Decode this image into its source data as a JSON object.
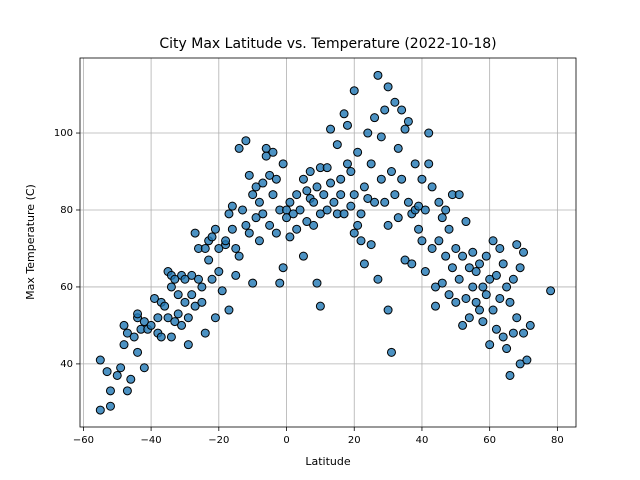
{
  "chart_data": {
    "type": "scatter",
    "title": "City Max Latitude vs. Temperature (2022-10-18)",
    "x_label": "Latitude",
    "y_label": "Max Temperature (C)",
    "color": "#1f77b4",
    "edge_color": "#000000",
    "grid": true,
    "xlim": [
      -61,
      85.5
    ],
    "ylim": [
      23.6,
      119.5
    ],
    "xticks": [
      {
        "value": -60,
        "label": "−60"
      },
      {
        "value": -40,
        "label": "−40"
      },
      {
        "value": -20,
        "label": "−20"
      },
      0,
      20,
      40,
      60,
      80
    ],
    "yticks": [
      40,
      60,
      80,
      100
    ],
    "x": [
      -55,
      -55,
      -53,
      -52,
      -52,
      -50,
      -49,
      -48,
      -48,
      -47,
      -47,
      -46,
      -45,
      -44,
      -44,
      -44,
      -43,
      -42,
      -42,
      -41,
      -40,
      -39,
      -38,
      -38,
      -37,
      -37,
      -36,
      -35,
      -35,
      -34,
      -34,
      -34,
      -33,
      -33,
      -32,
      -32,
      -31,
      -31,
      -30,
      -30,
      -29,
      -29,
      -28,
      -28,
      -27,
      -27,
      -26,
      -26,
      -25,
      -25,
      -24,
      -24,
      -23,
      -23,
      -22,
      -22,
      -21,
      -21,
      -20,
      -20,
      -19,
      -18,
      -18,
      -17,
      -17,
      -16,
      -16,
      -15,
      -15,
      -14,
      -14,
      -13,
      -12,
      -12,
      -11,
      -11,
      -10,
      -10,
      -9,
      -9,
      -8,
      -8,
      -7,
      -7,
      -6,
      -6,
      -5,
      -5,
      -4,
      -4,
      -3,
      -3,
      -2,
      -2,
      -1,
      -1,
      0,
      0,
      1,
      1,
      2,
      3,
      3,
      4,
      5,
      5,
      6,
      6,
      7,
      7,
      8,
      8,
      9,
      9,
      10,
      10,
      10,
      11,
      12,
      12,
      13,
      13,
      14,
      15,
      15,
      16,
      16,
      17,
      17,
      18,
      18,
      19,
      19,
      20,
      20,
      20,
      21,
      21,
      22,
      22,
      23,
      23,
      24,
      24,
      25,
      25,
      26,
      26,
      27,
      27,
      28,
      28,
      29,
      29,
      30,
      30,
      30,
      31,
      31,
      32,
      32,
      33,
      33,
      34,
      34,
      35,
      35,
      36,
      36,
      37,
      37,
      38,
      38,
      39,
      39,
      40,
      40,
      41,
      41,
      42,
      42,
      43,
      43,
      44,
      44,
      45,
      45,
      46,
      46,
      47,
      47,
      48,
      48,
      49,
      49,
      50,
      50,
      51,
      51,
      52,
      52,
      53,
      53,
      54,
      54,
      55,
      55,
      56,
      56,
      57,
      57,
      58,
      58,
      59,
      59,
      60,
      60,
      61,
      61,
      62,
      62,
      63,
      63,
      64,
      64,
      65,
      65,
      66,
      66,
      67,
      67,
      68,
      68,
      69,
      69,
      70,
      70,
      71,
      72,
      78
    ],
    "values": [
      41,
      28,
      38,
      29,
      33,
      37,
      39,
      50,
      45,
      33,
      48,
      36,
      47,
      43,
      52,
      53,
      49,
      39,
      51,
      49,
      50,
      57,
      52,
      48,
      56,
      47,
      55,
      52,
      64,
      63,
      60,
      47,
      62,
      51,
      58,
      53,
      50,
      63,
      56,
      62,
      45,
      52,
      63,
      58,
      55,
      74,
      70,
      62,
      60,
      56,
      70,
      48,
      72,
      67,
      73,
      62,
      75,
      52,
      64,
      70,
      59,
      71,
      72,
      79,
      54,
      81,
      75,
      63,
      70,
      96,
      68,
      80,
      98,
      76,
      89,
      74,
      84,
      61,
      78,
      86,
      72,
      82,
      87,
      79,
      96,
      94,
      89,
      76,
      95,
      84,
      88,
      74,
      80,
      61,
      92,
      65,
      80,
      78,
      73,
      82,
      79,
      84,
      75,
      80,
      88,
      68,
      85,
      77,
      83,
      90,
      82,
      76,
      86,
      61,
      55,
      79,
      91,
      84,
      91,
      80,
      87,
      101,
      82,
      79,
      97,
      88,
      84,
      105,
      79,
      92,
      102,
      90,
      81,
      111,
      74,
      84,
      76,
      95,
      79,
      72,
      86,
      66,
      100,
      83,
      92,
      71,
      104,
      82,
      115,
      62,
      99,
      88,
      106,
      82,
      112,
      76,
      54,
      43,
      90,
      108,
      84,
      96,
      78,
      106,
      88,
      101,
      67,
      103,
      82,
      79,
      66,
      92,
      80,
      81,
      75,
      88,
      72,
      64,
      80,
      100,
      92,
      86,
      70,
      60,
      55,
      82,
      72,
      78,
      61,
      68,
      80,
      75,
      58,
      84,
      65,
      56,
      70,
      84,
      62,
      50,
      68,
      57,
      77,
      65,
      52,
      60,
      69,
      64,
      56,
      54,
      66,
      60,
      51,
      68,
      58,
      45,
      62,
      72,
      54,
      63,
      49,
      70,
      57,
      47,
      66,
      44,
      60,
      37,
      56,
      62,
      48,
      71,
      52,
      40,
      65,
      48,
      69,
      41,
      50,
      59
    ]
  }
}
